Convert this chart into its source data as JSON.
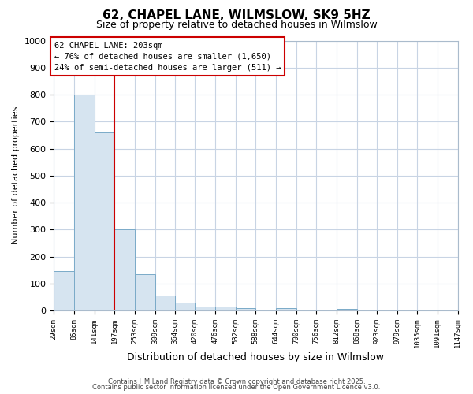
{
  "title1": "62, CHAPEL LANE, WILMSLOW, SK9 5HZ",
  "title2": "Size of property relative to detached houses in Wilmslow",
  "xlabel": "Distribution of detached houses by size in Wilmslow",
  "ylabel": "Number of detached properties",
  "bar_values": [
    145,
    800,
    660,
    300,
    135,
    55,
    30,
    15,
    15,
    8,
    0,
    10,
    0,
    0,
    5,
    0,
    0,
    0,
    0,
    0
  ],
  "bin_edges": [
    29,
    85,
    141,
    197,
    253,
    309,
    364,
    420,
    476,
    532,
    588,
    644,
    700,
    756,
    812,
    868,
    923,
    979,
    1035,
    1091,
    1147
  ],
  "tick_labels": [
    "29sqm",
    "85sqm",
    "141sqm",
    "197sqm",
    "253sqm",
    "309sqm",
    "364sqm",
    "420sqm",
    "476sqm",
    "532sqm",
    "588sqm",
    "644sqm",
    "700sqm",
    "756sqm",
    "812sqm",
    "868sqm",
    "923sqm",
    "979sqm",
    "1035sqm",
    "1091sqm",
    "1147sqm"
  ],
  "bar_color": "#d6e4f0",
  "bar_edge_color": "#7aaac8",
  "property_line_x": 197,
  "property_line_color": "#cc0000",
  "annotation_line1": "62 CHAPEL LANE: 203sqm",
  "annotation_line2": "← 76% of detached houses are smaller (1,650)",
  "annotation_line3": "24% of semi-detached houses are larger (511) →",
  "annotation_box_color": "#cc0000",
  "ylim": [
    0,
    1000
  ],
  "yticks": [
    0,
    100,
    200,
    300,
    400,
    500,
    600,
    700,
    800,
    900,
    1000
  ],
  "grid_color": "#c8d4e4",
  "background_color": "#ffffff",
  "footer_text1": "Contains HM Land Registry data © Crown copyright and database right 2025.",
  "footer_text2": "Contains public sector information licensed under the Open Government Licence v3.0."
}
